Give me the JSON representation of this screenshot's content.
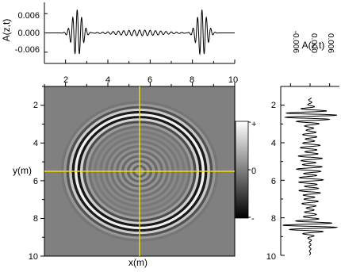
{
  "chart_data": [
    {
      "type": "line",
      "panel": "top-trace",
      "ylabel": "A(z,t)",
      "yticks": [
        "0.006",
        "0.000",
        "-0.006"
      ],
      "ytick_values": [
        0.006,
        0.0,
        -0.006
      ],
      "xticks": [
        "2",
        "4",
        "6",
        "8",
        "10"
      ],
      "xtick_values": [
        2,
        4,
        6,
        8,
        10
      ],
      "xlim": [
        1,
        10
      ],
      "ylim": [
        -0.0095,
        0.0095
      ],
      "packets": [
        {
          "center": 2.55,
          "amplitude": 0.0072,
          "width": 0.33,
          "wavelength": 0.21
        },
        {
          "center": 8.45,
          "amplitude": 0.0072,
          "width": 0.33,
          "wavelength": 0.21
        },
        {
          "center": 5.5,
          "amplitude": 0.0009,
          "width": 1.5,
          "wavelength": 0.25
        }
      ]
    },
    {
      "type": "heatmap",
      "panel": "wavefield",
      "xlabel": "x(m)",
      "ylabel": "y(m)",
      "xlim": [
        1,
        10
      ],
      "ylim": [
        1,
        10
      ],
      "xticks": [],
      "yticks": [
        "2",
        "4",
        "6",
        "8",
        "10"
      ],
      "ytick_values": [
        2,
        4,
        6,
        8,
        10
      ],
      "center": [
        5.5,
        5.5
      ],
      "ring_radius": 3.0,
      "ring_wavelength": 0.26,
      "crosshair": {
        "x": 5.5,
        "y": 5.5,
        "color": "#f0e000"
      },
      "colorbar": {
        "labels": [
          "+",
          "0",
          "-"
        ],
        "colormap": "white-gray-black"
      }
    },
    {
      "type": "line",
      "panel": "side-trace",
      "xlabel": "A(z,t)",
      "xticks": [
        "-0.006",
        "0.000",
        "0.006"
      ],
      "xtick_values": [
        -0.006,
        0.0,
        0.006
      ],
      "yticks": [
        "2",
        "4",
        "6",
        "8",
        "10"
      ],
      "ytick_values": [
        2,
        4,
        6,
        8,
        10
      ],
      "ylim": [
        1,
        10
      ],
      "xlim": [
        -0.009,
        0.009
      ]
    }
  ]
}
